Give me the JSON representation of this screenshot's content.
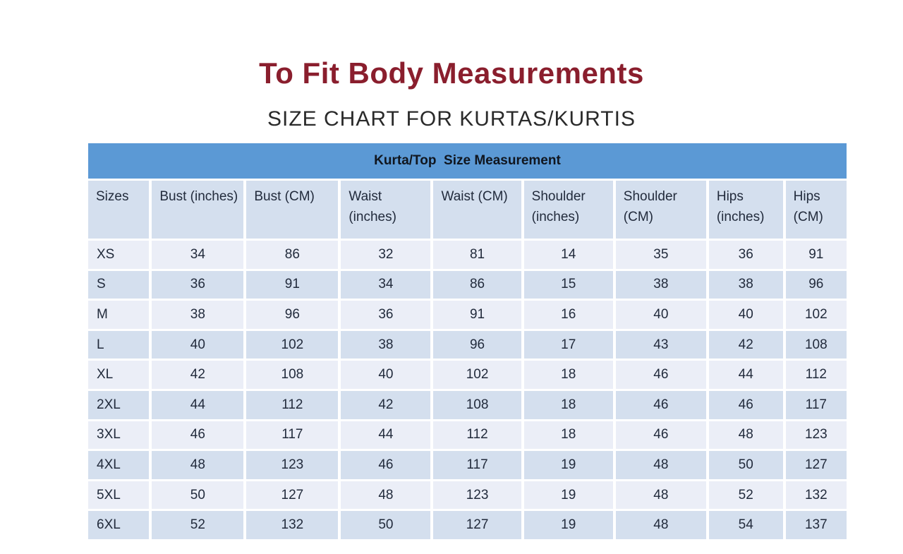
{
  "page": {
    "title": "To Fit Body Measurements",
    "subtitle": "SIZE CHART FOR KURTAS/KURTIS"
  },
  "colors": {
    "title_text": "#8A1E2D",
    "subtitle_text": "#2A2A2A",
    "banner_bg": "#5B99D5",
    "band_dark": "#D4DFEE",
    "band_light": "#EBEEF7",
    "cell_text": "#222B3C"
  },
  "table": {
    "title": "Kurta/Top  Size Measurement",
    "columns": [
      "Sizes",
      "Bust (inches)",
      "Bust (CM)",
      "Waist (inches)",
      "Waist (CM)",
      "Shoulder (inches)",
      "Shoulder (CM)",
      "Hips (inches)",
      "Hips (CM)"
    ],
    "rows": [
      {
        "size": "XS",
        "values": [
          34,
          86,
          32,
          81,
          14,
          35,
          36,
          91
        ]
      },
      {
        "size": "S",
        "values": [
          36,
          91,
          34,
          86,
          15,
          38,
          38,
          96
        ]
      },
      {
        "size": "M",
        "values": [
          38,
          96,
          36,
          91,
          16,
          40,
          40,
          102
        ]
      },
      {
        "size": "L",
        "values": [
          40,
          102,
          38,
          96,
          17,
          43,
          42,
          108
        ]
      },
      {
        "size": "XL",
        "values": [
          42,
          108,
          40,
          102,
          18,
          46,
          44,
          112
        ]
      },
      {
        "size": "2XL",
        "values": [
          44,
          112,
          42,
          108,
          18,
          46,
          46,
          117
        ]
      },
      {
        "size": "3XL",
        "values": [
          46,
          117,
          44,
          112,
          18,
          46,
          48,
          123
        ]
      },
      {
        "size": "4XL",
        "values": [
          48,
          123,
          46,
          117,
          19,
          48,
          50,
          127
        ]
      },
      {
        "size": "5XL",
        "values": [
          50,
          127,
          48,
          123,
          19,
          48,
          52,
          132
        ]
      },
      {
        "size": "6XL",
        "values": [
          52,
          132,
          50,
          127,
          19,
          48,
          54,
          137
        ]
      }
    ]
  }
}
